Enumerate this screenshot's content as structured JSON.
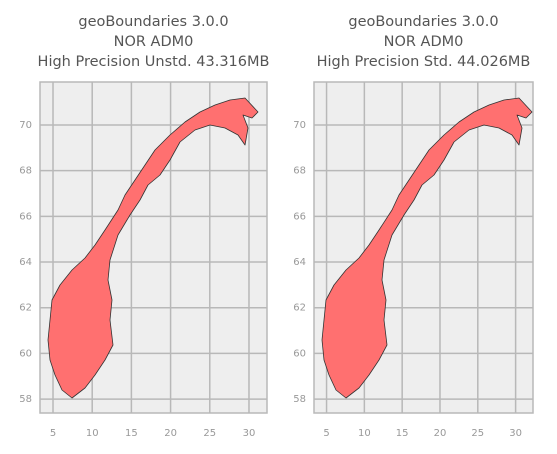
{
  "chart_data": [
    {
      "type": "map",
      "title": [
        "geoBoundaries 3.0.0",
        "NOR ADM0",
        "High Precision Unstd. 43.316MB"
      ],
      "xlim": [
        3.34,
        32.3
      ],
      "ylim": [
        57.39,
        71.88
      ],
      "xticks": [
        5,
        10,
        15,
        20,
        25,
        30
      ],
      "yticks": [
        58,
        60,
        62,
        64,
        66,
        68,
        70
      ],
      "grid": true,
      "color": "#ff7070"
    },
    {
      "type": "map",
      "title": [
        "geoBoundaries 3.0.0",
        "NOR ADM0",
        "High Precision Std. 44.026MB"
      ],
      "xlim": [
        3.34,
        32.3
      ],
      "ylim": [
        57.39,
        71.88
      ],
      "xticks": [
        5,
        10,
        15,
        20,
        25,
        30
      ],
      "yticks": [
        58,
        60,
        62,
        64,
        66,
        68,
        70
      ],
      "grid": true,
      "color": "#ff7070"
    }
  ]
}
